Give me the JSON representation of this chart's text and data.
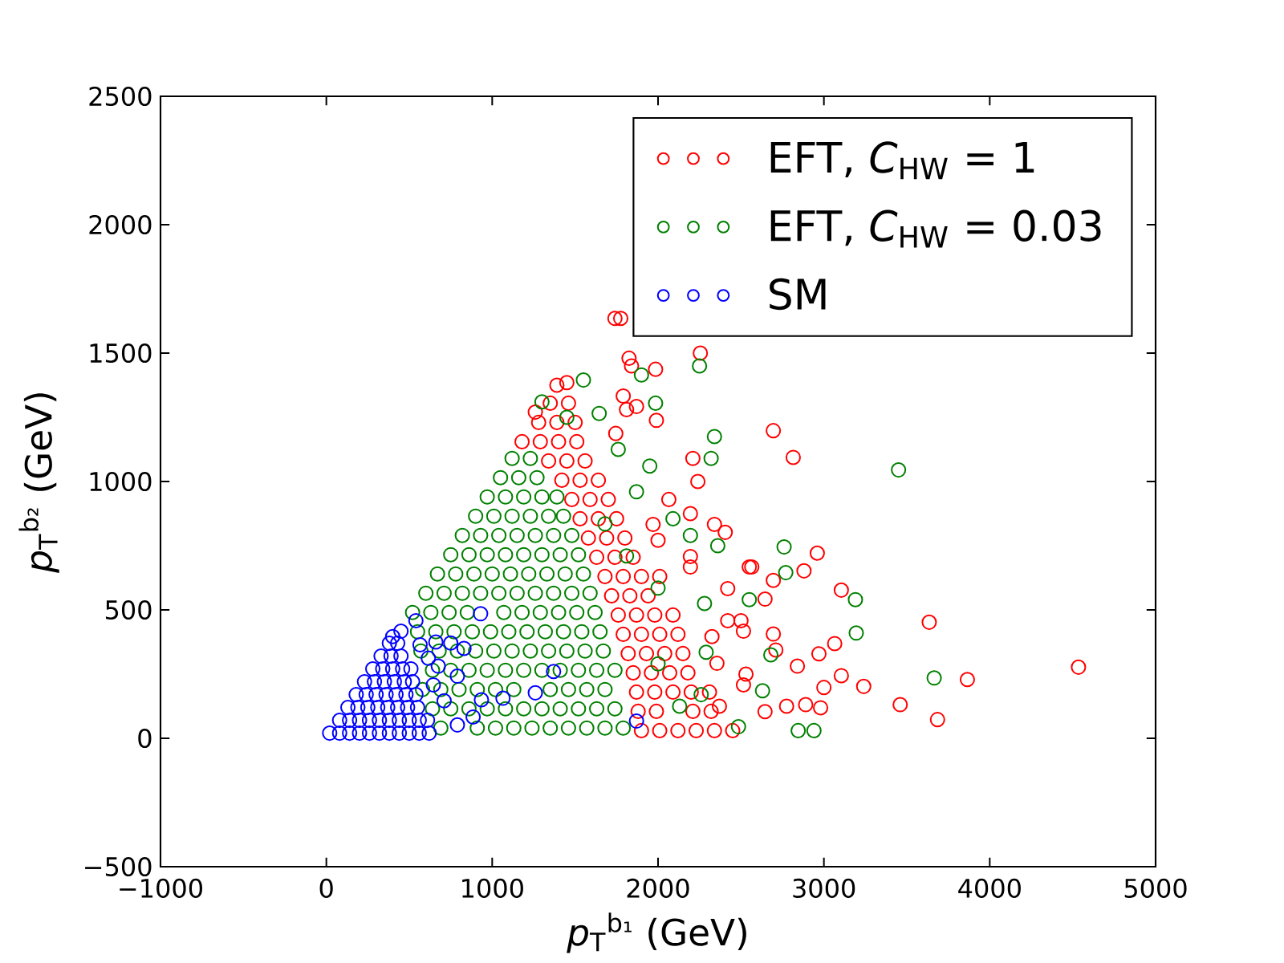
{
  "chart_data": {
    "type": "scatter",
    "xlabel": "*p*$_{T}$$^{b₁}$ (GeV)",
    "ylabel": "*p*$_{T}$$^{b₂}$ (GeV)",
    "xlim": [
      -1000,
      5000
    ],
    "ylim": [
      -500,
      2500
    ],
    "xticks": [
      {
        "value": -1000,
        "label": "−1000"
      },
      0,
      1000,
      2000,
      3000,
      4000,
      5000
    ],
    "yticks": [
      {
        "value": -500,
        "label": "−500"
      },
      0,
      500,
      1000,
      1500,
      2000,
      2500
    ],
    "marker": "circle",
    "legend": "top right",
    "series": [
      {
        "name": "EFT, *C*$_{HW}$ = 1",
        "color": "#ff0000",
        "x": [
          1900,
          2010,
          2120,
          2230,
          2340,
          2450,
          1880,
          1990,
          2210,
          2320,
          1870,
          1980,
          2090,
          2200,
          2310,
          1850,
          1960,
          2070,
          2180,
          1820,
          1930,
          2040,
          2150,
          1790,
          1900,
          2010,
          2120,
          1760,
          1870,
          1980,
          2090,
          1720,
          1830,
          1940,
          1680,
          1790,
          1900,
          2010,
          1630,
          1740,
          1850,
          1580,
          1690,
          1800,
          1530,
          1640,
          1750,
          1480,
          1590,
          1700,
          1420,
          1530,
          1640,
          1340,
          1450,
          1560,
          1180,
          1290,
          1400,
          1510,
          1280,
          1390,
          1500,
          1350,
          1460,
          1740,
          1775,
          2255,
          1825,
          1840,
          1985,
          1790,
          1870,
          1810,
          1990,
          1390,
          1450,
          1260,
          1745,
          2210,
          2240,
          2065,
          2195,
          2340,
          2405,
          2550,
          2420,
          2195,
          1970,
          2000,
          2420,
          2515,
          2355,
          2515,
          2695,
          2815,
          2960,
          2880,
          2695,
          3105,
          3635,
          3065,
          2970,
          4535,
          3865,
          3105,
          3240,
          3000,
          3460,
          3685,
          2890,
          2980,
          2840,
          2775,
          2695,
          2710,
          2565,
          2645,
          2500,
          2195,
          2325,
          2530,
          2645,
          2370
        ],
        "values": [
          30,
          30,
          30,
          30,
          30,
          30,
          105,
          105,
          105,
          105,
          180,
          180,
          180,
          180,
          180,
          255,
          255,
          255,
          255,
          330,
          330,
          330,
          330,
          405,
          405,
          405,
          405,
          480,
          480,
          480,
          480,
          555,
          555,
          555,
          630,
          630,
          630,
          630,
          705,
          705,
          705,
          780,
          780,
          780,
          855,
          855,
          855,
          930,
          930,
          930,
          1005,
          1005,
          1005,
          1080,
          1080,
          1080,
          1155,
          1155,
          1155,
          1155,
          1230,
          1230,
          1230,
          1305,
          1305,
          1635,
          1635,
          1500,
          1480,
          1450,
          1437,
          1333,
          1292,
          1280,
          1238,
          1375,
          1385,
          1270,
          1187,
          1090,
          1000,
          930,
          875,
          833,
          802,
          667,
          583,
          667,
          833,
          771,
          458,
          417,
          292,
          208,
          1198,
          1094,
          721,
          652,
          615,
          577,
          452,
          369,
          329,
          277,
          229,
          244,
          202,
          198,
          131,
          73,
          131,
          119,
          281,
          125,
          406,
          344,
          667,
          542,
          458,
          708,
          396,
          250,
          104,
          125
        ]
      },
      {
        "name": "EFT, *C*$_{HW}$ = 0.03",
        "color": "#008000",
        "x": [
          690,
          910,
          1020,
          1130,
          1240,
          1350,
          1460,
          1570,
          1680,
          1790,
          640,
          750,
          860,
          970,
          1080,
          1190,
          1300,
          1410,
          1520,
          1630,
          1740,
          580,
          690,
          800,
          910,
          1020,
          1130,
          1350,
          1460,
          1570,
          1680,
          640,
          750,
          860,
          970,
          1080,
          1190,
          1300,
          1410,
          1520,
          1630,
          1740,
          570,
          680,
          790,
          900,
          1010,
          1120,
          1230,
          1340,
          1450,
          1560,
          1670,
          550,
          660,
          770,
          880,
          990,
          1100,
          1210,
          1320,
          1430,
          1540,
          1650,
          520,
          630,
          740,
          850,
          1070,
          1180,
          1290,
          1400,
          1510,
          1620,
          600,
          710,
          820,
          930,
          1040,
          1150,
          1260,
          1370,
          1480,
          1590,
          670,
          780,
          890,
          1000,
          1110,
          1220,
          1330,
          1440,
          1550,
          750,
          860,
          970,
          1080,
          1190,
          1300,
          1410,
          1520,
          820,
          930,
          1040,
          1150,
          1260,
          1370,
          1480,
          900,
          1010,
          1120,
          1230,
          1340,
          1430,
          970,
          1080,
          1190,
          1300,
          1390,
          1050,
          1160,
          1270,
          1120,
          1230,
          1300,
          1450,
          1550,
          1645,
          1760,
          1900,
          1985,
          2250,
          2340,
          2320,
          1950,
          1870,
          2090,
          2195,
          2360,
          2550,
          2280,
          2000,
          1810,
          1680,
          2290,
          2260,
          2485,
          2130,
          2000,
          3450,
          2760,
          2770,
          3190,
          3195,
          3665,
          2845,
          2940,
          2680,
          2630
        ],
        "values": [
          40,
          40,
          40,
          40,
          40,
          40,
          40,
          40,
          40,
          40,
          115,
          115,
          115,
          115,
          115,
          115,
          115,
          115,
          115,
          115,
          115,
          190,
          190,
          190,
          190,
          190,
          190,
          190,
          190,
          190,
          190,
          265,
          265,
          265,
          265,
          265,
          265,
          265,
          265,
          265,
          265,
          265,
          340,
          340,
          340,
          340,
          340,
          340,
          340,
          340,
          340,
          340,
          340,
          415,
          415,
          415,
          415,
          415,
          415,
          415,
          415,
          415,
          415,
          415,
          490,
          490,
          490,
          490,
          490,
          490,
          490,
          490,
          490,
          490,
          565,
          565,
          565,
          565,
          565,
          565,
          565,
          565,
          565,
          565,
          640,
          640,
          640,
          640,
          640,
          640,
          640,
          640,
          640,
          715,
          715,
          715,
          715,
          715,
          715,
          715,
          715,
          790,
          790,
          790,
          790,
          790,
          790,
          790,
          865,
          865,
          865,
          865,
          865,
          865,
          940,
          940,
          940,
          940,
          940,
          1015,
          1015,
          1015,
          1090,
          1090,
          1310,
          1250,
          1395,
          1265,
          1125,
          1415,
          1305,
          1450,
          1175,
          1090,
          1060,
          960,
          855,
          790,
          750,
          540,
          525,
          585,
          710,
          835,
          335,
          170,
          45,
          125,
          290,
          1045,
          745,
          645,
          540,
          410,
          235,
          30,
          30,
          325,
          185
        ]
      },
      {
        "name": "SM",
        "color": "#0000ff",
        "x": [
          20,
          80,
          140,
          200,
          260,
          320,
          380,
          440,
          500,
          560,
          620,
          80,
          140,
          200,
          260,
          320,
          380,
          440,
          500,
          560,
          610,
          130,
          190,
          250,
          310,
          370,
          430,
          490,
          550,
          180,
          240,
          300,
          360,
          420,
          480,
          540,
          230,
          290,
          350,
          410,
          470,
          520,
          280,
          340,
          400,
          460,
          510,
          330,
          390,
          450,
          380,
          430,
          930,
          1370,
          1260,
          1065,
          935,
          885,
          790,
          1870,
          830,
          790,
          750,
          660,
          540,
          450,
          400,
          615,
          645,
          710,
          675,
          565
        ],
        "values": [
          20,
          20,
          20,
          20,
          20,
          20,
          20,
          20,
          20,
          20,
          20,
          70,
          70,
          70,
          70,
          70,
          70,
          70,
          70,
          70,
          70,
          120,
          120,
          120,
          120,
          120,
          120,
          120,
          120,
          170,
          170,
          170,
          170,
          170,
          170,
          170,
          220,
          220,
          220,
          220,
          220,
          220,
          270,
          270,
          270,
          270,
          270,
          320,
          320,
          320,
          370,
          370,
          485,
          260,
          177,
          156,
          150,
          83,
          52,
          67,
          350,
          242,
          371,
          375,
          458,
          417,
          396,
          312,
          208,
          146,
          281,
          364
        ]
      }
    ]
  }
}
